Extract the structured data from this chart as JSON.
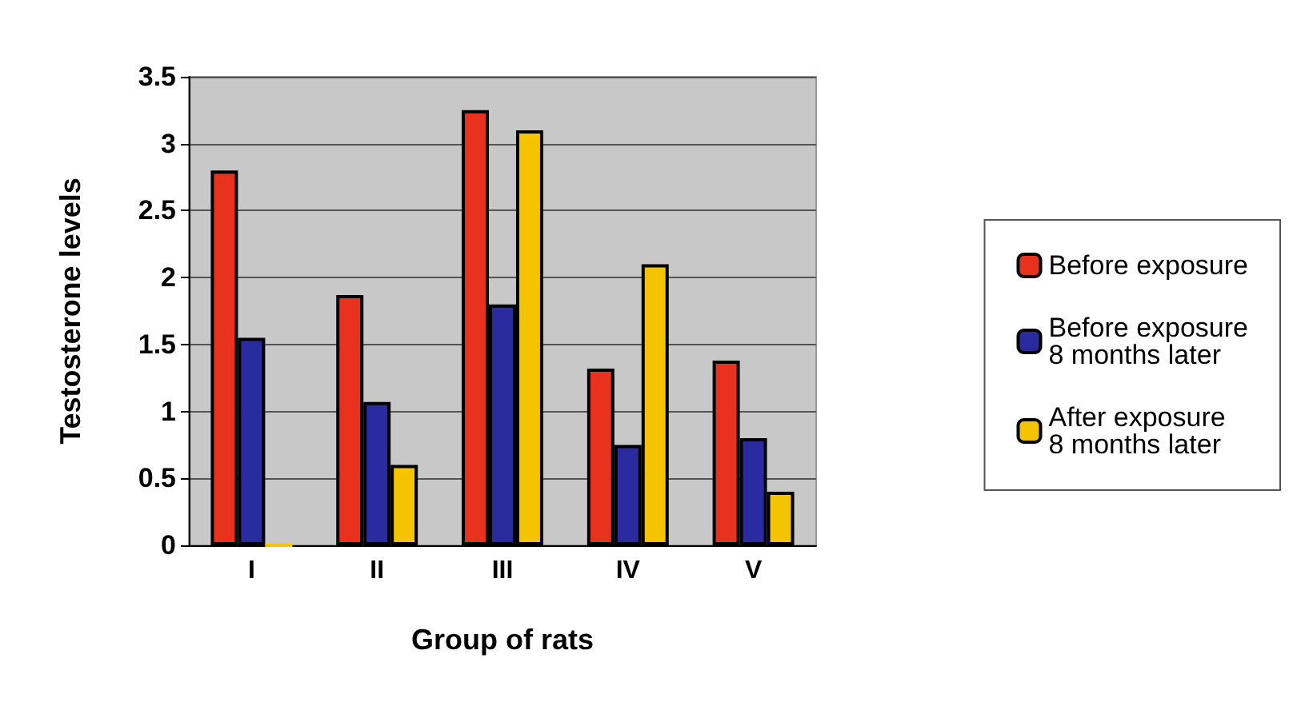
{
  "chart_data": {
    "type": "bar",
    "xlabel": "Group of rats",
    "ylabel": "Testosterone levels",
    "categories": [
      "I",
      "II",
      "III",
      "IV",
      "V"
    ],
    "series": [
      {
        "name": "Before exposure",
        "color": "#e8321e",
        "values": [
          2.8,
          1.87,
          3.25,
          1.32,
          1.38
        ]
      },
      {
        "name": "Before exposure\n8 months later",
        "color": "#2b2ba0",
        "values": [
          1.55,
          1.07,
          1.8,
          0.75,
          0.8
        ]
      },
      {
        "name": "After exposure\n8 months later",
        "color": "#f5c400",
        "values": [
          0,
          0.6,
          3.1,
          2.1,
          0.4
        ]
      }
    ],
    "ylim": [
      0,
      3.5
    ],
    "yticks": [
      0,
      0.5,
      1,
      1.5,
      2,
      2.5,
      3,
      3.5
    ],
    "grid": "y",
    "legend": "right"
  }
}
